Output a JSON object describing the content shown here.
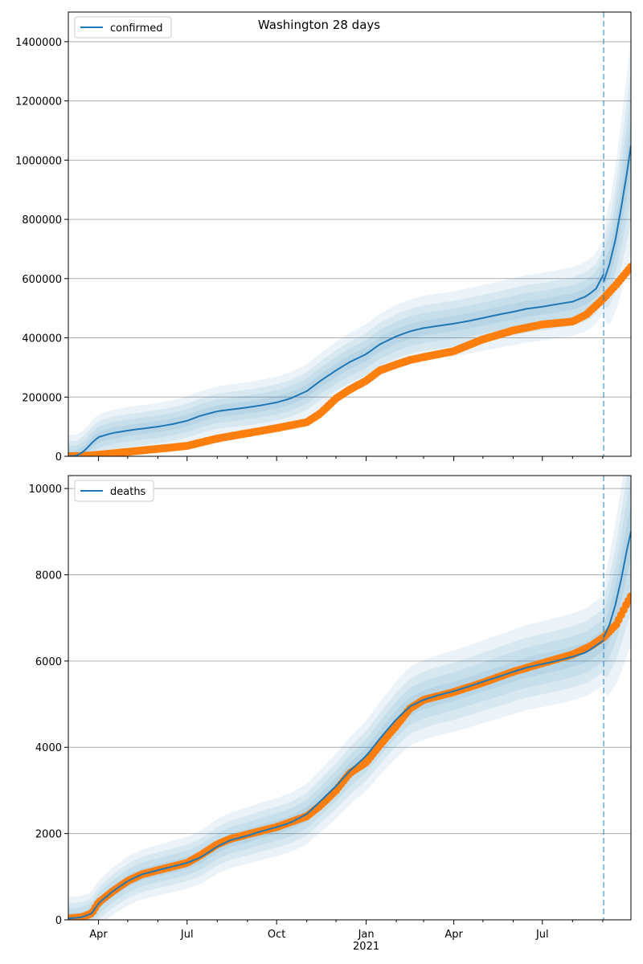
{
  "figure": {
    "title": "Washington 28 days"
  },
  "chart_data": [
    {
      "type": "line",
      "name": "confirmed-panel",
      "legend": {
        "label": "confirmed",
        "position": "top-left"
      },
      "x_range": [
        "2020-03-01",
        "2021-09-30"
      ],
      "ylim": [
        0,
        1500000
      ],
      "yticks": [
        0,
        200000,
        400000,
        600000,
        800000,
        1000000,
        1200000,
        1400000
      ],
      "grid": "y",
      "forecast_start": "2021-09-02",
      "colors": {
        "model": "#1f77b4",
        "observed": "#ff7f0e",
        "band": "#1f77b4",
        "forecast_line": "#1f77b4"
      },
      "model_line": {
        "label": "confirmed",
        "x": [
          "2020-03-01",
          "2020-03-10",
          "2020-03-18",
          "2020-03-25",
          "2020-04-01",
          "2020-04-15",
          "2020-05-01",
          "2020-05-15",
          "2020-06-01",
          "2020-06-15",
          "2020-07-01",
          "2020-07-15",
          "2020-08-01",
          "2020-08-15",
          "2020-09-01",
          "2020-09-15",
          "2020-10-01",
          "2020-10-15",
          "2020-11-01",
          "2020-11-15",
          "2020-12-01",
          "2020-12-15",
          "2021-01-01",
          "2021-01-15",
          "2021-02-01",
          "2021-02-15",
          "2021-03-01",
          "2021-03-15",
          "2021-04-01",
          "2021-04-15",
          "2021-05-01",
          "2021-05-15",
          "2021-06-01",
          "2021-06-15",
          "2021-07-01",
          "2021-07-15",
          "2021-08-01",
          "2021-08-15",
          "2021-08-25",
          "2021-09-02"
        ],
        "y": [
          0,
          2000,
          20000,
          45000,
          65000,
          78000,
          87000,
          93000,
          100000,
          108000,
          120000,
          137000,
          152000,
          158000,
          165000,
          172000,
          182000,
          195000,
          220000,
          255000,
          290000,
          318000,
          345000,
          378000,
          405000,
          422000,
          433000,
          440000,
          448000,
          456000,
          467000,
          477000,
          488000,
          498000,
          505000,
          513000,
          522000,
          540000,
          565000,
          615000
        ]
      },
      "forecast_line": {
        "x": [
          "2021-09-02",
          "2021-09-08",
          "2021-09-14",
          "2021-09-20",
          "2021-09-26",
          "2021-09-30"
        ],
        "y": [
          590000,
          650000,
          730000,
          840000,
          960000,
          1050000
        ]
      },
      "observed": {
        "x": [
          "2020-03-01",
          "2020-03-15",
          "2020-04-01",
          "2020-05-01",
          "2020-06-01",
          "2020-07-01",
          "2020-08-01",
          "2020-09-01",
          "2020-10-01",
          "2020-11-01",
          "2020-11-15",
          "2020-12-01",
          "2020-12-15",
          "2021-01-01",
          "2021-01-15",
          "2021-02-01",
          "2021-02-15",
          "2021-03-01",
          "2021-04-01",
          "2021-05-01",
          "2021-06-01",
          "2021-07-01",
          "2021-08-01",
          "2021-08-15",
          "2021-09-01",
          "2021-09-15",
          "2021-09-30"
        ],
        "y": [
          0,
          1000,
          5000,
          15000,
          25000,
          35000,
          60000,
          78000,
          95000,
          115000,
          145000,
          195000,
          225000,
          255000,
          290000,
          310000,
          325000,
          335000,
          355000,
          395000,
          425000,
          445000,
          455000,
          478000,
          530000,
          580000,
          640000
        ]
      }
    },
    {
      "type": "line",
      "name": "deaths-panel",
      "legend": {
        "label": "deaths",
        "position": "top-left"
      },
      "x_range": [
        "2020-03-01",
        "2021-09-30"
      ],
      "ylim": [
        0,
        10300
      ],
      "yticks": [
        0,
        2000,
        4000,
        6000,
        8000,
        10000
      ],
      "xticks": [
        {
          "date": "2020-04-01",
          "label": "Apr"
        },
        {
          "date": "2020-07-01",
          "label": "Jul"
        },
        {
          "date": "2020-10-01",
          "label": "Oct"
        },
        {
          "date": "2021-01-01",
          "label": "Jan"
        },
        {
          "date": "2021-04-01",
          "label": "Apr"
        },
        {
          "date": "2021-07-01",
          "label": "Jul"
        }
      ],
      "x_year_label": {
        "date": "2021-01-01",
        "label": "2021"
      },
      "grid": "y",
      "forecast_start": "2021-09-02",
      "colors": {
        "model": "#1f77b4",
        "observed": "#ff7f0e",
        "band": "#1f77b4",
        "forecast_line": "#1f77b4"
      },
      "model_line": {
        "label": "deaths",
        "x": [
          "2020-03-01",
          "2020-03-15",
          "2020-03-25",
          "2020-04-01",
          "2020-04-15",
          "2020-05-01",
          "2020-05-15",
          "2020-06-01",
          "2020-06-15",
          "2020-07-01",
          "2020-07-15",
          "2020-08-01",
          "2020-08-15",
          "2020-09-01",
          "2020-09-15",
          "2020-10-01",
          "2020-10-15",
          "2020-11-01",
          "2020-11-15",
          "2020-12-01",
          "2020-12-15",
          "2021-01-01",
          "2021-01-15",
          "2021-02-01",
          "2021-02-15",
          "2021-03-01",
          "2021-03-15",
          "2021-04-01",
          "2021-04-15",
          "2021-05-01",
          "2021-05-15",
          "2021-06-01",
          "2021-06-15",
          "2021-07-01",
          "2021-07-15",
          "2021-08-01",
          "2021-08-15",
          "2021-09-02"
        ],
        "y": [
          30,
          60,
          150,
          380,
          650,
          900,
          1050,
          1150,
          1230,
          1320,
          1450,
          1700,
          1850,
          1950,
          2050,
          2150,
          2250,
          2450,
          2750,
          3100,
          3450,
          3800,
          4200,
          4650,
          4950,
          5100,
          5200,
          5300,
          5400,
          5520,
          5620,
          5750,
          5850,
          5930,
          6000,
          6100,
          6200,
          6480
        ]
      },
      "forecast_line": {
        "x": [
          "2021-09-02",
          "2021-09-08",
          "2021-09-14",
          "2021-09-20",
          "2021-09-26",
          "2021-09-30"
        ],
        "y": [
          6550,
          6850,
          7300,
          7900,
          8600,
          9000
        ]
      },
      "observed": {
        "x": [
          "2020-03-01",
          "2020-03-15",
          "2020-03-25",
          "2020-04-01",
          "2020-04-15",
          "2020-05-01",
          "2020-05-15",
          "2020-06-01",
          "2020-07-01",
          "2020-07-15",
          "2020-08-01",
          "2020-08-15",
          "2020-09-01",
          "2020-10-01",
          "2020-11-01",
          "2020-11-15",
          "2020-12-01",
          "2020-12-15",
          "2021-01-01",
          "2021-01-15",
          "2021-02-01",
          "2021-02-15",
          "2021-03-01",
          "2021-04-01",
          "2021-05-01",
          "2021-06-01",
          "2021-07-01",
          "2021-08-01",
          "2021-08-20",
          "2021-09-02",
          "2021-09-15",
          "2021-09-25",
          "2021-09-30"
        ],
        "y": [
          30,
          60,
          150,
          400,
          650,
          900,
          1050,
          1150,
          1320,
          1500,
          1750,
          1880,
          1980,
          2150,
          2400,
          2650,
          3000,
          3400,
          3650,
          4050,
          4500,
          4900,
          5100,
          5280,
          5500,
          5750,
          5950,
          6150,
          6350,
          6550,
          6850,
          7300,
          7500
        ]
      }
    }
  ]
}
